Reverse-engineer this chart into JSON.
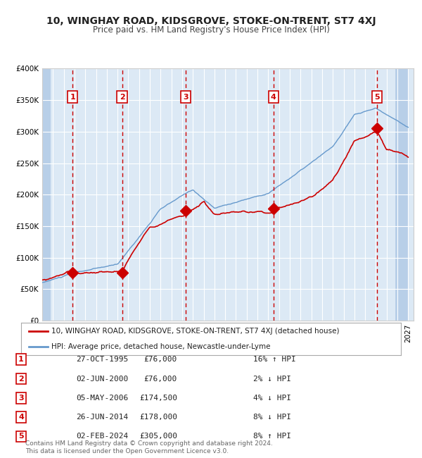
{
  "title": "10, WINGHAY ROAD, KIDSGROVE, STOKE-ON-TRENT, ST7 4XJ",
  "subtitle": "Price paid vs. HM Land Registry's House Price Index (HPI)",
  "ylim": [
    0,
    400000
  ],
  "yticks": [
    0,
    50000,
    100000,
    150000,
    200000,
    250000,
    300000,
    350000,
    400000
  ],
  "xlim_start": 1993.0,
  "xlim_end": 2027.5,
  "background_color": "#dce9f5",
  "grid_color": "#ffffff",
  "hatch_color": "#b8cfe8",
  "sale_points": [
    {
      "year": 1995.82,
      "price": 76000,
      "label": "1"
    },
    {
      "year": 2000.42,
      "price": 76000,
      "label": "2"
    },
    {
      "year": 2006.34,
      "price": 174500,
      "label": "3"
    },
    {
      "year": 2014.49,
      "price": 178000,
      "label": "4"
    },
    {
      "year": 2024.09,
      "price": 305000,
      "label": "5"
    }
  ],
  "table_rows": [
    {
      "num": "1",
      "date": "27-OCT-1995",
      "price": "£76,000",
      "hpi": "16% ↑ HPI"
    },
    {
      "num": "2",
      "date": "02-JUN-2000",
      "price": "£76,000",
      "hpi": "2% ↓ HPI"
    },
    {
      "num": "3",
      "date": "05-MAY-2006",
      "price": "£174,500",
      "hpi": "4% ↓ HPI"
    },
    {
      "num": "4",
      "date": "26-JUN-2014",
      "price": "£178,000",
      "hpi": "8% ↓ HPI"
    },
    {
      "num": "5",
      "date": "02-FEB-2024",
      "price": "£305,000",
      "hpi": "8% ↑ HPI"
    }
  ],
  "legend_red": "10, WINGHAY ROAD, KIDSGROVE, STOKE-ON-TRENT, ST7 4XJ (detached house)",
  "legend_blue": "HPI: Average price, detached house, Newcastle-under-Lyme",
  "footer": "Contains HM Land Registry data © Crown copyright and database right 2024.\nThis data is licensed under the Open Government Licence v3.0.",
  "red_color": "#cc0000",
  "blue_color": "#6699cc",
  "sale_marker_color": "#cc0000",
  "dashed_line_color": "#cc0000",
  "dash2_color": "#aaaaaa"
}
